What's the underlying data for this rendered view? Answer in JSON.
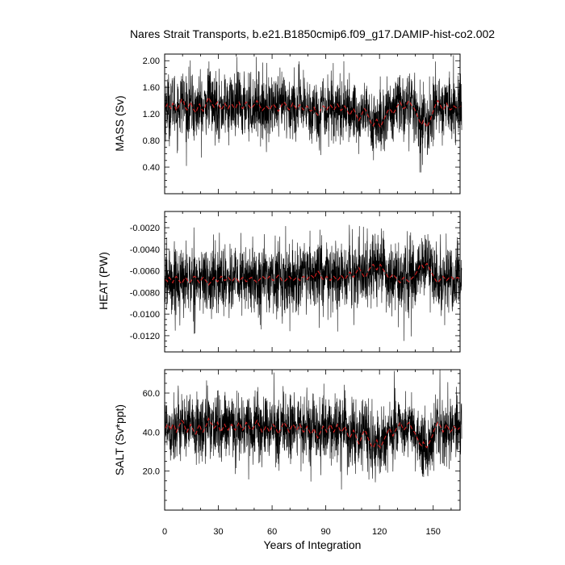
{
  "figure": {
    "title": "Nares Strait Transports, b.e21.B1850cmip6.f09_g17.DAMIP-hist-co2.002",
    "xlabel": "Years of Integration"
  },
  "chart_data": [
    {
      "type": "line",
      "ylabel": "MASS (Sv)",
      "xlim": [
        0,
        165
      ],
      "ylim": [
        0.0,
        2.1
      ],
      "yticks": [
        0.4,
        0.8,
        1.2,
        1.6,
        2.0
      ],
      "ytick_labels": [
        "0.40",
        "0.80",
        "1.20",
        "1.60",
        "2.00"
      ],
      "xticks": [
        0,
        30,
        60,
        90,
        120,
        150
      ],
      "xtick_labels": [
        "0",
        "30",
        "60",
        "90",
        "120",
        "150"
      ],
      "series": [
        {
          "values": [
            1.3,
            1.35,
            1.32,
            1.28,
            1.36,
            1.33,
            1.25,
            1.3,
            1.35,
            1.42,
            1.4,
            1.3,
            1.26,
            1.32,
            1.38,
            1.3,
            1.25,
            1.22,
            1.3,
            1.35,
            1.28,
            1.24,
            1.3,
            1.38,
            1.45,
            1.4,
            1.35,
            1.3,
            1.34,
            1.38,
            1.32,
            1.26,
            1.3,
            1.36,
            1.32,
            1.28,
            1.33,
            1.35,
            1.3,
            1.28,
            1.34,
            1.38,
            1.32,
            1.28,
            1.32,
            1.38,
            1.36,
            1.3,
            1.28,
            1.32,
            1.35,
            1.4,
            1.36,
            1.3,
            1.25,
            1.28,
            1.32,
            1.3,
            1.26,
            1.3,
            1.35,
            1.32,
            1.28,
            1.24,
            1.28,
            1.34,
            1.38,
            1.35,
            1.3,
            1.26,
            1.3,
            1.36,
            1.32,
            1.28,
            1.3,
            1.34,
            1.3,
            1.26,
            1.28,
            1.32,
            1.28,
            1.24,
            1.26,
            1.3,
            1.22,
            1.18,
            1.22,
            1.28,
            1.32,
            1.3,
            1.26,
            1.3,
            1.34,
            1.3,
            1.26,
            1.3,
            1.35,
            1.3,
            1.25,
            1.28,
            1.32,
            1.28,
            1.22,
            1.18,
            1.24,
            1.28,
            1.22,
            1.15,
            1.1,
            1.16,
            1.22,
            1.28,
            1.25,
            1.18,
            1.12,
            1.05,
            1.02,
            1.08,
            1.12,
            1.05,
            1.0,
            1.06,
            1.12,
            1.18,
            1.24,
            1.28,
            1.25,
            1.2,
            1.24,
            1.3,
            1.34,
            1.38,
            1.32,
            1.28,
            1.3,
            1.36,
            1.4,
            1.35,
            1.3,
            1.28,
            1.22,
            1.15,
            1.08,
            1.04,
            1.1,
            1.05,
            1.0,
            1.06,
            1.12,
            1.2,
            1.28,
            1.35,
            1.4,
            1.36,
            1.3,
            1.26,
            1.3,
            1.36,
            1.3,
            1.26,
            1.28,
            1.32,
            1.3,
            1.28,
            1.3,
            1.32
          ],
          "color": "#d62020"
        }
      ],
      "raw": {
        "mean": 1.22,
        "std": 0.24,
        "color": "#000000"
      }
    },
    {
      "type": "line",
      "ylabel": "HEAT (PW)",
      "xlim": [
        0,
        165
      ],
      "ylim": [
        -0.0135,
        -0.0005
      ],
      "yticks": [
        -0.012,
        -0.01,
        -0.008,
        -0.006,
        -0.004,
        -0.002
      ],
      "ytick_labels": [
        "-0.0120",
        "-0.0100",
        "-0.0080",
        "-0.0060",
        "-0.0040",
        "-0.0020"
      ],
      "xticks": [
        0,
        30,
        60,
        90,
        120,
        150
      ],
      "xtick_labels": [
        "0",
        "30",
        "60",
        "90",
        "120",
        "150"
      ],
      "series": [
        {
          "values": [
            -0.0068,
            -0.007,
            -0.0066,
            -0.0068,
            -0.0071,
            -0.0067,
            -0.0065,
            -0.0068,
            -0.007,
            -0.0072,
            -0.0069,
            -0.0066,
            -0.0068,
            -0.0071,
            -0.007,
            -0.0067,
            -0.0065,
            -0.0066,
            -0.0069,
            -0.0071,
            -0.0068,
            -0.0066,
            -0.0068,
            -0.007,
            -0.0073,
            -0.0071,
            -0.0069,
            -0.0066,
            -0.0068,
            -0.007,
            -0.0068,
            -0.0065,
            -0.0066,
            -0.0069,
            -0.0068,
            -0.0066,
            -0.0068,
            -0.007,
            -0.0068,
            -0.0066,
            -0.0068,
            -0.007,
            -0.0068,
            -0.0066,
            -0.0067,
            -0.007,
            -0.0069,
            -0.0067,
            -0.0066,
            -0.0068,
            -0.0069,
            -0.0071,
            -0.0069,
            -0.0067,
            -0.0065,
            -0.0066,
            -0.0068,
            -0.0067,
            -0.0065,
            -0.0067,
            -0.0069,
            -0.0068,
            -0.0066,
            -0.0064,
            -0.0066,
            -0.0069,
            -0.007,
            -0.0069,
            -0.0067,
            -0.0065,
            -0.0067,
            -0.0069,
            -0.0068,
            -0.0066,
            -0.0067,
            -0.0069,
            -0.0067,
            -0.0065,
            -0.0066,
            -0.0068,
            -0.0066,
            -0.0064,
            -0.0065,
            -0.0067,
            -0.0063,
            -0.006,
            -0.0062,
            -0.0066,
            -0.0068,
            -0.0067,
            -0.0065,
            -0.0067,
            -0.0069,
            -0.0067,
            -0.0065,
            -0.0067,
            -0.0069,
            -0.0067,
            -0.0064,
            -0.0066,
            -0.0068,
            -0.0066,
            -0.0063,
            -0.0061,
            -0.0064,
            -0.0066,
            -0.0063,
            -0.006,
            -0.0057,
            -0.006,
            -0.0063,
            -0.0066,
            -0.0065,
            -0.0061,
            -0.0058,
            -0.0055,
            -0.0054,
            -0.0057,
            -0.0059,
            -0.0056,
            -0.0054,
            -0.0057,
            -0.006,
            -0.0062,
            -0.0065,
            -0.0067,
            -0.0065,
            -0.0063,
            -0.0065,
            -0.0067,
            -0.0069,
            -0.0071,
            -0.0068,
            -0.0066,
            -0.0067,
            -0.0069,
            -0.007,
            -0.0068,
            -0.0066,
            -0.0065,
            -0.0062,
            -0.0059,
            -0.0055,
            -0.0054,
            -0.0057,
            -0.0055,
            -0.0053,
            -0.0056,
            -0.006,
            -0.0063,
            -0.0066,
            -0.0069,
            -0.0071,
            -0.0069,
            -0.0067,
            -0.0065,
            -0.0067,
            -0.0069,
            -0.0067,
            -0.0065,
            -0.0066,
            -0.0068,
            -0.0067,
            -0.0066,
            -0.0067,
            -0.0068
          ],
          "color": "#d62020"
        }
      ],
      "raw": {
        "mean": -0.0066,
        "std": 0.0016,
        "color": "#000000"
      }
    },
    {
      "type": "line",
      "ylabel": "SALT (Sv*ppt)",
      "xlim": [
        0,
        165
      ],
      "ylim": [
        0,
        72
      ],
      "yticks": [
        20,
        40,
        60
      ],
      "ytick_labels": [
        "20.0",
        "40.0",
        "60.0"
      ],
      "xticks": [
        0,
        30,
        60,
        90,
        120,
        150
      ],
      "xtick_labels": [
        "0",
        "30",
        "60",
        "90",
        "120",
        "150"
      ],
      "series": [
        {
          "values": [
            42,
            44,
            43,
            41,
            44,
            43,
            40,
            42,
            44,
            46,
            45,
            42,
            40,
            42,
            44,
            42,
            40,
            39,
            42,
            44,
            41,
            40,
            42,
            44,
            47,
            45,
            44,
            42,
            43,
            45,
            42,
            40,
            42,
            44,
            42,
            41,
            43,
            44,
            42,
            41,
            43,
            45,
            43,
            41,
            42,
            45,
            44,
            42,
            41,
            42,
            44,
            46,
            44,
            42,
            40,
            41,
            43,
            42,
            40,
            42,
            44,
            43,
            41,
            39,
            41,
            43,
            45,
            44,
            42,
            40,
            42,
            44,
            43,
            41,
            42,
            44,
            42,
            40,
            41,
            43,
            41,
            39,
            40,
            42,
            39,
            37,
            39,
            41,
            43,
            42,
            40,
            42,
            44,
            42,
            40,
            42,
            44,
            42,
            40,
            41,
            43,
            41,
            38,
            37,
            39,
            41,
            39,
            36,
            34,
            36,
            39,
            41,
            40,
            37,
            35,
            33,
            32,
            34,
            36,
            33,
            32,
            34,
            36,
            38,
            40,
            42,
            40,
            38,
            40,
            42,
            43,
            45,
            43,
            41,
            42,
            44,
            45,
            43,
            41,
            40,
            38,
            36,
            34,
            33,
            35,
            33,
            32,
            34,
            36,
            38,
            41,
            43,
            45,
            44,
            42,
            40,
            42,
            44,
            42,
            40,
            41,
            43,
            42,
            41,
            42,
            43
          ],
          "color": "#d62020"
        }
      ],
      "raw": {
        "mean": 40.5,
        "std": 8.5,
        "color": "#000000"
      }
    }
  ]
}
